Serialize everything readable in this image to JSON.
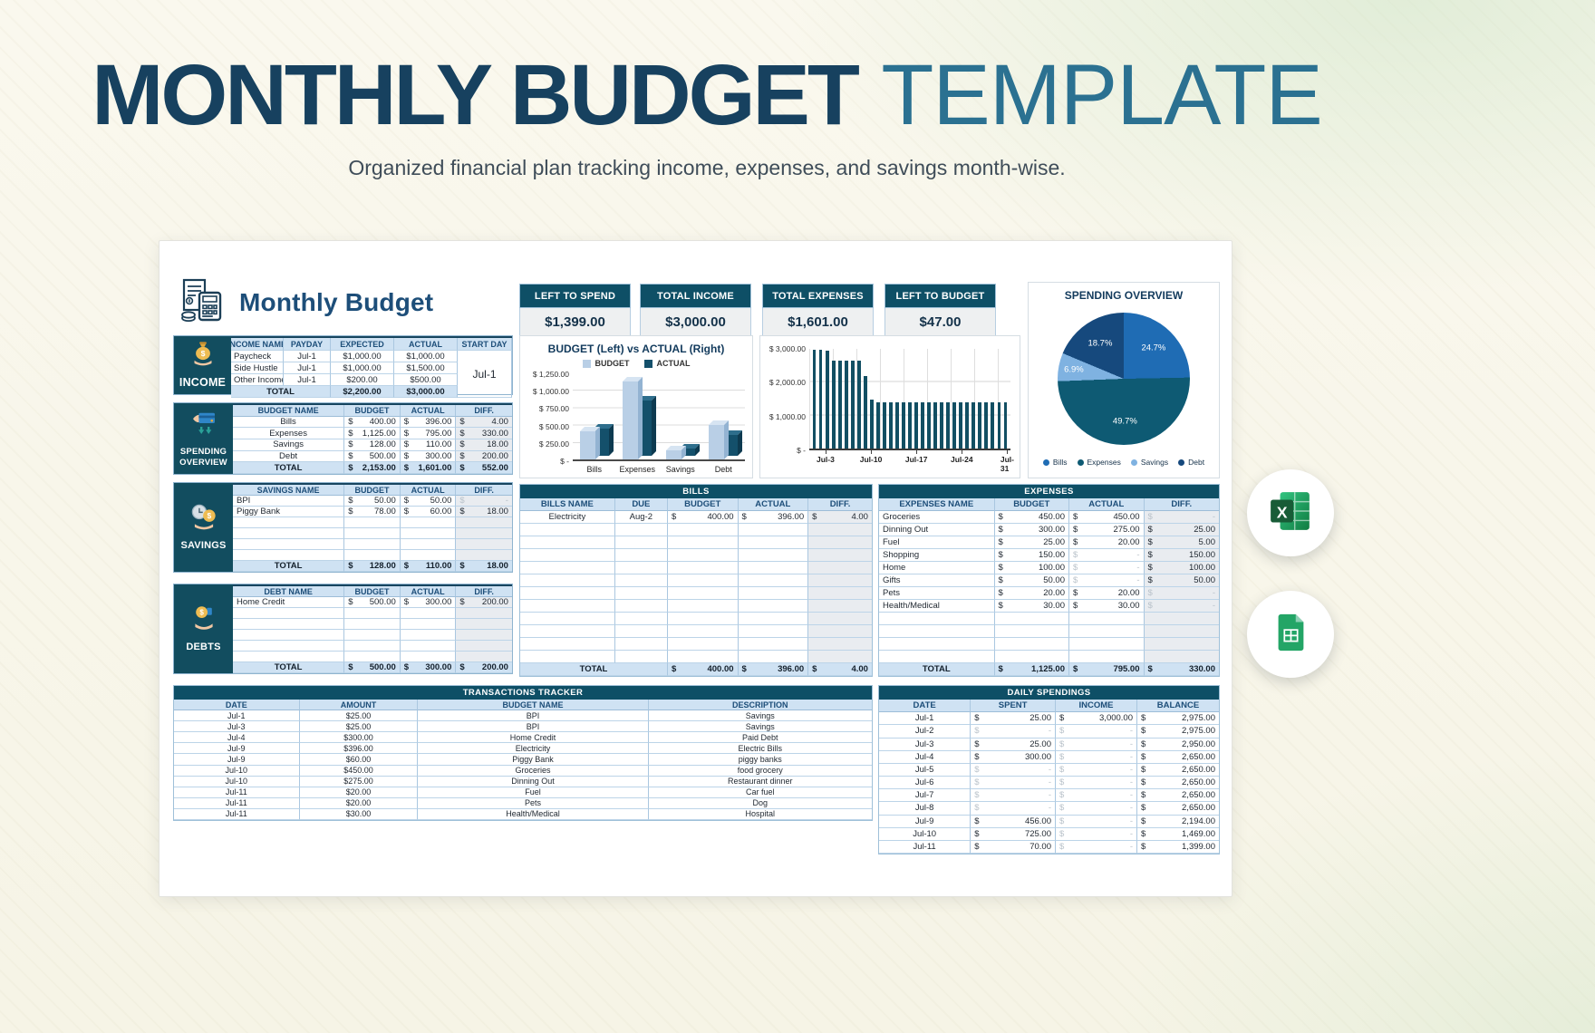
{
  "header": {
    "title_main": "MONTHLY BUDGET",
    "title_accent": "TEMPLATE",
    "subtitle": "Organized financial plan tracking income, expenses, and savings month-wise."
  },
  "sheet_title": "Monthly Budget",
  "colors": {
    "dark_teal": "#0e4f66",
    "navy_text": "#1d4e79",
    "header_blue": "#cfe2f3",
    "diff_gray": "#e9ecf0",
    "budget_bar": "#b9cfe6",
    "actual_bar": "#14506b",
    "excel_green": "#21a366",
    "sheets_green": "#23a566"
  },
  "icons": {
    "logo": "receipt-calculator-icon",
    "income": "money-bag-icon",
    "spending_overview": "card-payment-icon",
    "savings": "clock-coin-icon",
    "debts": "coin-hand-icon",
    "export": [
      "excel-icon",
      "google-sheets-icon"
    ]
  },
  "kpis": [
    {
      "label": "LEFT TO SPEND",
      "value": "$1,399.00"
    },
    {
      "label": "TOTAL INCOME",
      "value": "$3,000.00"
    },
    {
      "label": "TOTAL EXPENSES",
      "value": "$1,601.00"
    },
    {
      "label": "LEFT TO BUDGET",
      "value": "$47.00"
    }
  ],
  "sections": {
    "income": {
      "label": "INCOME",
      "headers": [
        "INCOME NAME",
        "PAYDAY",
        "EXPECTED",
        "ACTUAL",
        "START DAY"
      ],
      "rows": [
        [
          "Paycheck",
          "Jul-1",
          "$1,000.00",
          "$1,000.00"
        ],
        [
          "Side Hustle",
          "Jul-1",
          "$1,000.00",
          "$1,500.00"
        ],
        [
          "Other Income",
          "Jul-1",
          "$200.00",
          "$500.00"
        ]
      ],
      "start_day": "Jul-1",
      "total": [
        "TOTAL",
        "$2,200.00",
        "$3,000.00"
      ]
    },
    "spending_overview": {
      "label": "SPENDING OVERVIEW",
      "headers": [
        "BUDGET NAME",
        "BUDGET",
        "ACTUAL",
        "DIFF."
      ],
      "widths": [
        40,
        20,
        20,
        20
      ],
      "money_cols": [
        1,
        2,
        3
      ],
      "diff_col": 3,
      "align": [
        "c",
        "c",
        "c",
        "c"
      ],
      "rows": [
        [
          "Bills",
          "400.00",
          "396.00",
          "4.00"
        ],
        [
          "Expenses",
          "1,125.00",
          "795.00",
          "330.00"
        ],
        [
          "Savings",
          "128.00",
          "110.00",
          "18.00"
        ],
        [
          "Debt",
          "500.00",
          "300.00",
          "200.00"
        ]
      ],
      "empty_rows": 0,
      "total": [
        "TOTAL",
        "2,153.00",
        "1,601.00",
        "552.00"
      ]
    },
    "savings": {
      "label": "SAVINGS",
      "headers": [
        "SAVINGS NAME",
        "BUDGET",
        "ACTUAL",
        "DIFF."
      ],
      "widths": [
        40,
        20,
        20,
        20
      ],
      "money_cols": [
        1,
        2,
        3
      ],
      "diff_col": 3,
      "align": [
        "l",
        "c",
        "c",
        "c"
      ],
      "rows": [
        [
          "BPI",
          "50.00",
          "50.00",
          "-"
        ],
        [
          "Piggy Bank",
          "78.00",
          "60.00",
          "18.00"
        ]
      ],
      "empty_rows": 4,
      "total": [
        "TOTAL",
        "128.00",
        "110.00",
        "18.00"
      ]
    },
    "debts": {
      "label": "DEBTS",
      "headers": [
        "DEBT NAME",
        "BUDGET",
        "ACTUAL",
        "DIFF."
      ],
      "widths": [
        40,
        20,
        20,
        20
      ],
      "money_cols": [
        1,
        2,
        3
      ],
      "diff_col": 3,
      "align": [
        "l",
        "c",
        "c",
        "c"
      ],
      "rows": [
        [
          "Home Credit",
          "500.00",
          "300.00",
          "200.00"
        ]
      ],
      "empty_rows": 5,
      "total": [
        "TOTAL",
        "500.00",
        "300.00",
        "200.00"
      ]
    }
  },
  "tables": {
    "bills": {
      "title": "BILLS",
      "headers": [
        "BILLS NAME",
        "DUE",
        "BUDGET",
        "ACTUAL",
        "DIFF."
      ],
      "widths": [
        27,
        15,
        20,
        20,
        18
      ],
      "money_cols": [
        2,
        3,
        4
      ],
      "diff_col": 4,
      "span2": true,
      "align": [
        "c",
        "c",
        "c",
        "c",
        "c"
      ],
      "rows": [
        [
          "Electricity",
          "Aug-2",
          "400.00",
          "396.00",
          "4.00"
        ]
      ],
      "empty_rows": 11,
      "total": [
        "TOTAL",
        "",
        "400.00",
        "396.00",
        "4.00"
      ]
    },
    "expenses": {
      "title": "EXPENSES",
      "headers": [
        "EXPENSES NAME",
        "BUDGET",
        "ACTUAL",
        "DIFF."
      ],
      "widths": [
        34,
        22,
        22,
        22
      ],
      "money_cols": [
        1,
        2,
        3
      ],
      "diff_col": 3,
      "align": [
        "l",
        "c",
        "c",
        "c"
      ],
      "rows": [
        [
          "Groceries",
          "450.00",
          "450.00",
          "-"
        ],
        [
          "Dinning Out",
          "300.00",
          "275.00",
          "25.00"
        ],
        [
          "Fuel",
          "25.00",
          "20.00",
          "5.00"
        ],
        [
          "Shopping",
          "150.00",
          "-",
          "150.00"
        ],
        [
          "Home",
          "100.00",
          "-",
          "100.00"
        ],
        [
          "Gifts",
          "50.00",
          "-",
          "50.00"
        ],
        [
          "Pets",
          "20.00",
          "20.00",
          "-"
        ],
        [
          "Health/Medical",
          "30.00",
          "30.00",
          "-"
        ]
      ],
      "empty_rows": 4,
      "total": [
        "TOTAL",
        "1,125.00",
        "795.00",
        "330.00"
      ]
    },
    "transactions": {
      "title": "TRANSACTIONS TRACKER",
      "headers": [
        "DATE",
        "AMOUNT",
        "BUDGET NAME",
        "DESCRIPTION"
      ],
      "widths": [
        18,
        17,
        33,
        32
      ],
      "money_cols": [],
      "align": [
        "c",
        "c",
        "c",
        "c"
      ],
      "rows": [
        [
          "Jul-1",
          "$25.00",
          "BPI",
          "Savings"
        ],
        [
          "Jul-3",
          "$25.00",
          "BPI",
          "Savings"
        ],
        [
          "Jul-4",
          "$300.00",
          "Home Credit",
          "Paid Debt"
        ],
        [
          "Jul-9",
          "$396.00",
          "Electricity",
          "Electric Bills"
        ],
        [
          "Jul-9",
          "$60.00",
          "Piggy Bank",
          "piggy banks"
        ],
        [
          "Jul-10",
          "$450.00",
          "Groceries",
          "food grocery"
        ],
        [
          "Jul-10",
          "$275.00",
          "Dinning Out",
          "Restaurant dinner"
        ],
        [
          "Jul-11",
          "$20.00",
          "Fuel",
          "Car fuel"
        ],
        [
          "Jul-11",
          "$20.00",
          "Pets",
          "Dog"
        ],
        [
          "Jul-11",
          "$30.00",
          "Health/Medical",
          "Hospital"
        ]
      ],
      "empty_rows": 0,
      "total": null
    },
    "daily": {
      "title": "DAILY SPENDINGS",
      "headers": [
        "DATE",
        "SPENT",
        "INCOME",
        "BALANCE"
      ],
      "widths": [
        27,
        25,
        24,
        24
      ],
      "money_cols": [
        1,
        2,
        3
      ],
      "align": [
        "c",
        "c",
        "c",
        "c"
      ],
      "rows": [
        [
          "Jul-1",
          "25.00",
          "3,000.00",
          "2,975.00"
        ],
        [
          "Jul-2",
          "-",
          "-",
          "2,975.00"
        ],
        [
          "Jul-3",
          "25.00",
          "-",
          "2,950.00"
        ],
        [
          "Jul-4",
          "300.00",
          "-",
          "2,650.00"
        ],
        [
          "Jul-5",
          "-",
          "-",
          "2,650.00"
        ],
        [
          "Jul-6",
          "-",
          "-",
          "2,650.00"
        ],
        [
          "Jul-7",
          "-",
          "-",
          "2,650.00"
        ],
        [
          "Jul-8",
          "-",
          "-",
          "2,650.00"
        ],
        [
          "Jul-9",
          "456.00",
          "-",
          "2,194.00"
        ],
        [
          "Jul-10",
          "725.00",
          "-",
          "1,469.00"
        ],
        [
          "Jul-11",
          "70.00",
          "-",
          "1,399.00"
        ]
      ],
      "empty_rows": 0,
      "total": null
    }
  },
  "chart_data": [
    {
      "type": "bar",
      "mount": "chart-budget-actual",
      "title": "BUDGET (Left) vs ACTUAL (Right)",
      "categories": [
        "Bills",
        "Expenses",
        "Savings",
        "Debt"
      ],
      "series": [
        {
          "name": "BUDGET",
          "values": [
            400,
            1125,
            128,
            500
          ],
          "color": "#b9cfe6",
          "top": "#d6e4f2",
          "side": "#93b3d2"
        },
        {
          "name": "ACTUAL",
          "values": [
            396,
            795,
            110,
            300
          ],
          "color": "#14506b",
          "top": "#2e6e8c",
          "side": "#0d3a50"
        }
      ],
      "y_ticks": [
        "$ 1,250.00",
        "$ 1,000.00",
        "$ 750.00",
        "$ 500.00",
        "$ 250.00",
        "$ -"
      ],
      "ylim": [
        0,
        1250
      ],
      "grid": true,
      "legend_position": "top"
    },
    {
      "type": "bar",
      "mount": "chart-daily-balance",
      "title": "",
      "values": [
        2975,
        2975,
        2950,
        2650,
        2650,
        2650,
        2650,
        2650,
        2194,
        1469,
        1399,
        1399,
        1399,
        1399,
        1399,
        1399,
        1399,
        1399,
        1399,
        1399,
        1399,
        1399,
        1399,
        1399,
        1399,
        1399,
        1399,
        1399,
        1399,
        1399,
        1399
      ],
      "x_tick_labels": [
        "Jul-3",
        "Jul-10",
        "Jul-17",
        "Jul-24",
        "Jul-31"
      ],
      "x_tick_positions": [
        2,
        9,
        16,
        23,
        30
      ],
      "y_ticks": [
        "$ 3,000.00",
        "$ 2,000.00",
        "$ 1,000.00",
        "$ -"
      ],
      "ylim": [
        0,
        3000
      ],
      "grid": true,
      "bar_color": "#124f63"
    },
    {
      "type": "pie",
      "mount": "chart-spending-pie",
      "title": "SPENDING OVERVIEW",
      "labels": [
        "Bills",
        "Expenses",
        "Savings",
        "Debt"
      ],
      "values": [
        24.7,
        49.7,
        6.9,
        18.7
      ],
      "unit": "%",
      "colors": [
        "#1f6cb4",
        "#0e5a73",
        "#7fb2e1",
        "#16497d"
      ],
      "legend_position": "bottom"
    }
  ]
}
